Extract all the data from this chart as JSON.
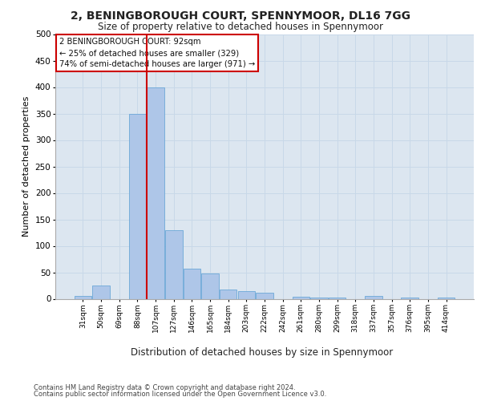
{
  "title_line1": "2, BENINGBOROUGH COURT, SPENNYMOOR, DL16 7GG",
  "title_line2": "Size of property relative to detached houses in Spennymoor",
  "xlabel": "Distribution of detached houses by size in Spennymoor",
  "ylabel": "Number of detached properties",
  "footer_line1": "Contains HM Land Registry data © Crown copyright and database right 2024.",
  "footer_line2": "Contains public sector information licensed under the Open Government Licence v3.0.",
  "bar_color": "#aec6e8",
  "bar_edge_color": "#5a9fd4",
  "grid_color": "#c8d8e8",
  "annotation_box_color": "#cc0000",
  "vline_color": "#cc0000",
  "categories": [
    "31sqm",
    "50sqm",
    "69sqm",
    "88sqm",
    "107sqm",
    "127sqm",
    "146sqm",
    "165sqm",
    "184sqm",
    "203sqm",
    "222sqm",
    "242sqm",
    "261sqm",
    "280sqm",
    "299sqm",
    "318sqm",
    "337sqm",
    "357sqm",
    "376sqm",
    "395sqm",
    "414sqm"
  ],
  "values": [
    5,
    25,
    0,
    350,
    400,
    130,
    57,
    47,
    18,
    15,
    12,
    0,
    4,
    3,
    2,
    0,
    5,
    0,
    2,
    0,
    2
  ],
  "property_size_label": "2 BENINGBOROUGH COURT: 92sqm",
  "annotation_line2": "← 25% of detached houses are smaller (329)",
  "annotation_line3": "74% of semi-detached houses are larger (971) →",
  "vline_x_index": 3.5,
  "ylim": [
    0,
    500
  ],
  "yticks": [
    0,
    50,
    100,
    150,
    200,
    250,
    300,
    350,
    400,
    450,
    500
  ],
  "background_color": "#dce6f0"
}
